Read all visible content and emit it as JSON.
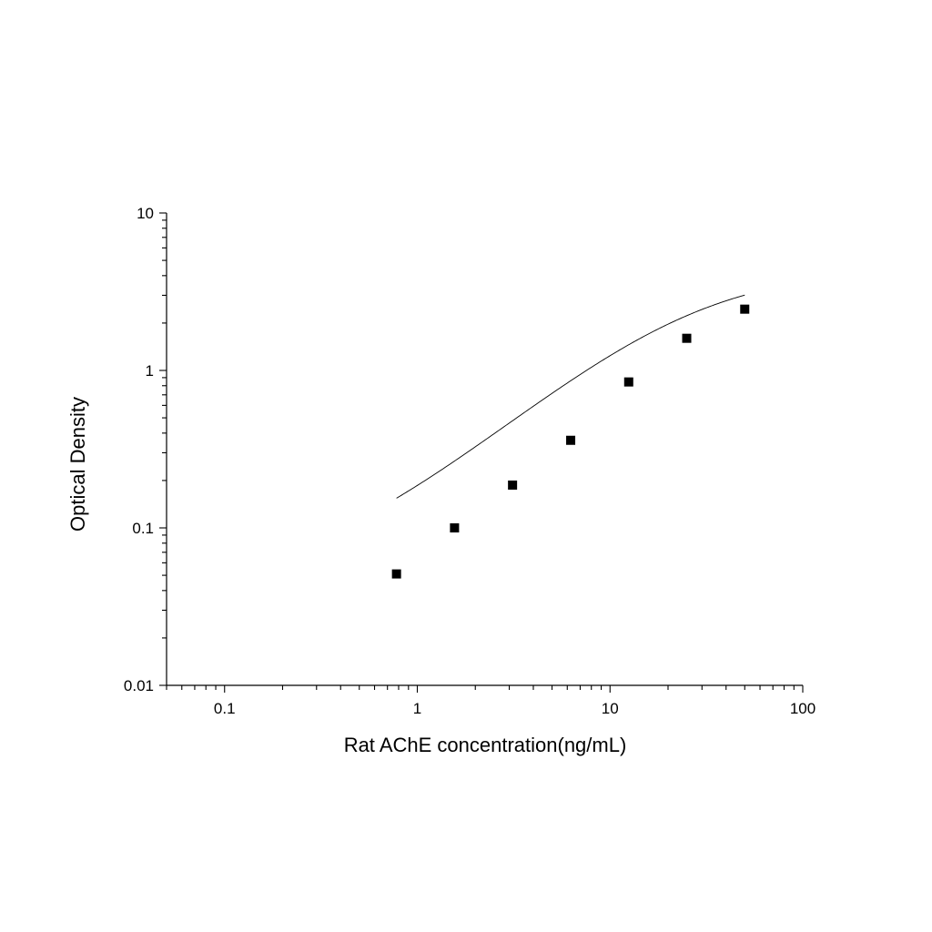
{
  "chart_data": {
    "type": "scatter",
    "title": "",
    "xlabel": "Rat AChE concentration(ng/mL)",
    "ylabel": "Optical Density",
    "x_scale": "log",
    "y_scale": "log",
    "xlim": [
      0.05,
      100
    ],
    "ylim": [
      0.01,
      10
    ],
    "x_ticks": [
      {
        "value": 0.1,
        "label": "0.1"
      },
      {
        "value": 1,
        "label": "1"
      },
      {
        "value": 10,
        "label": "10"
      },
      {
        "value": 100,
        "label": "100"
      }
    ],
    "y_ticks": [
      {
        "value": 0.01,
        "label": "0.01"
      },
      {
        "value": 0.1,
        "label": "0.1"
      },
      {
        "value": 1,
        "label": "1"
      },
      {
        "value": 10,
        "label": "10"
      }
    ],
    "grid": false,
    "legend": "none",
    "series": [
      {
        "marker": "square",
        "color": "#000000",
        "points": [
          {
            "x": 0.78,
            "y": 0.051
          },
          {
            "x": 1.56,
            "y": 0.1
          },
          {
            "x": 3.12,
            "y": 0.187
          },
          {
            "x": 6.25,
            "y": 0.36
          },
          {
            "x": 12.5,
            "y": 0.845
          },
          {
            "x": 25,
            "y": 1.6
          },
          {
            "x": 50,
            "y": 2.45
          }
        ]
      }
    ],
    "fit_curve": {
      "type": "4PL",
      "color": "#000000",
      "a": 0.045,
      "b": 1.05,
      "c": 26,
      "d": 4.5,
      "x_range": [
        0.78,
        50
      ]
    }
  }
}
